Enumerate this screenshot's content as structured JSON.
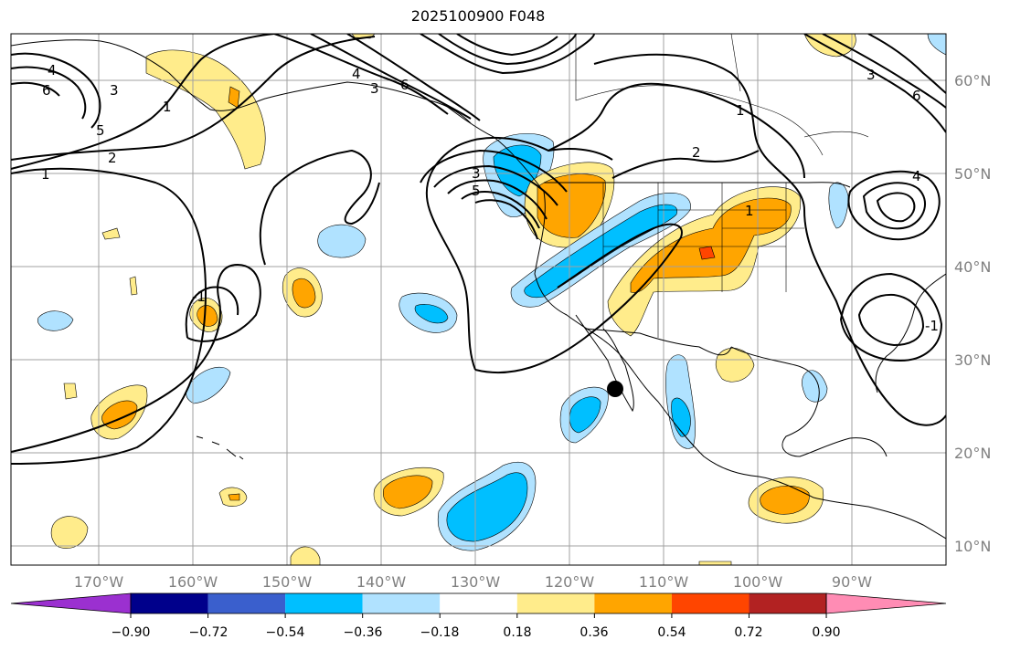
{
  "title": "2025100900 F048",
  "lat_labels": [
    "10°N",
    "20°N",
    "30°N",
    "40°N",
    "50°N",
    "60°N"
  ],
  "lon_labels": [
    "170°W",
    "160°W",
    "150°W",
    "140°W",
    "130°W",
    "120°W",
    "110°W",
    "100°W",
    "90°W"
  ],
  "contour_labels": [
    "1",
    "2",
    "3",
    "4",
    "6",
    "5",
    "-1"
  ],
  "colorbar": {
    "ticks": [
      "−0.90",
      "−0.72",
      "−0.54",
      "−0.36",
      "−0.18",
      "0.18",
      "0.36",
      "0.54",
      "0.72",
      "0.90"
    ],
    "colors": [
      "#9b30d0",
      "#00008b",
      "#3a5fcd",
      "#00bfff",
      "#b0e2ff",
      "#ffffff",
      "#ffec8b",
      "#ffa500",
      "#ff4500",
      "#b22222",
      "#ff8cb4"
    ]
  },
  "colors": {
    "pos1": "#ffec8b",
    "pos2": "#ffa500",
    "pos3": "#ff4500",
    "neg1": "#b0e2ff",
    "neg2": "#00bfff",
    "grid": "#a0a0a0",
    "marker": "#000000"
  }
}
